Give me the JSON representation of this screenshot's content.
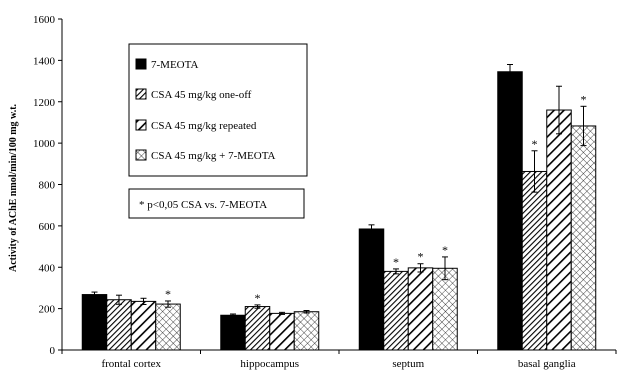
{
  "chart_data": {
    "type": "bar",
    "title": "",
    "xlabel": "",
    "ylabel": "Activity of AChE nmol/min/100 mg w.t.",
    "ylim": [
      0,
      1600
    ],
    "yticks": [
      0,
      200,
      400,
      600,
      800,
      1000,
      1200,
      1400,
      1600
    ],
    "grid": false,
    "legend_position": "top-left",
    "categories": [
      "frontal cortex",
      "hippocampus",
      "septum",
      "basal ganglia"
    ],
    "series": [
      {
        "name": "7-MEOTA",
        "fill": "black",
        "values": [
          268,
          168,
          585,
          1345
        ],
        "errors": [
          12,
          6,
          20,
          35
        ],
        "significant": [
          false,
          false,
          false,
          false
        ]
      },
      {
        "name": "CSA 45 mg/kg one-off",
        "fill": "dense-stripes",
        "values": [
          243,
          210,
          380,
          863
        ],
        "errors": [
          22,
          8,
          12,
          100
        ],
        "significant": [
          false,
          true,
          true,
          true
        ]
      },
      {
        "name": "CSA 45 mg/kg repeated",
        "fill": "wide-stripes",
        "values": [
          235,
          177,
          397,
          1160
        ],
        "errors": [
          15,
          5,
          20,
          115
        ],
        "significant": [
          false,
          false,
          true,
          false
        ]
      },
      {
        "name": "CSA 45 mg/kg + 7-MEOTA",
        "fill": "crosshatch",
        "values": [
          222,
          185,
          395,
          1083
        ],
        "errors": [
          15,
          6,
          55,
          95
        ],
        "significant": [
          true,
          false,
          true,
          true
        ]
      }
    ],
    "significance_marker": "*",
    "annotation": "* p<0,05 CSA vs. 7-MEOTA"
  }
}
